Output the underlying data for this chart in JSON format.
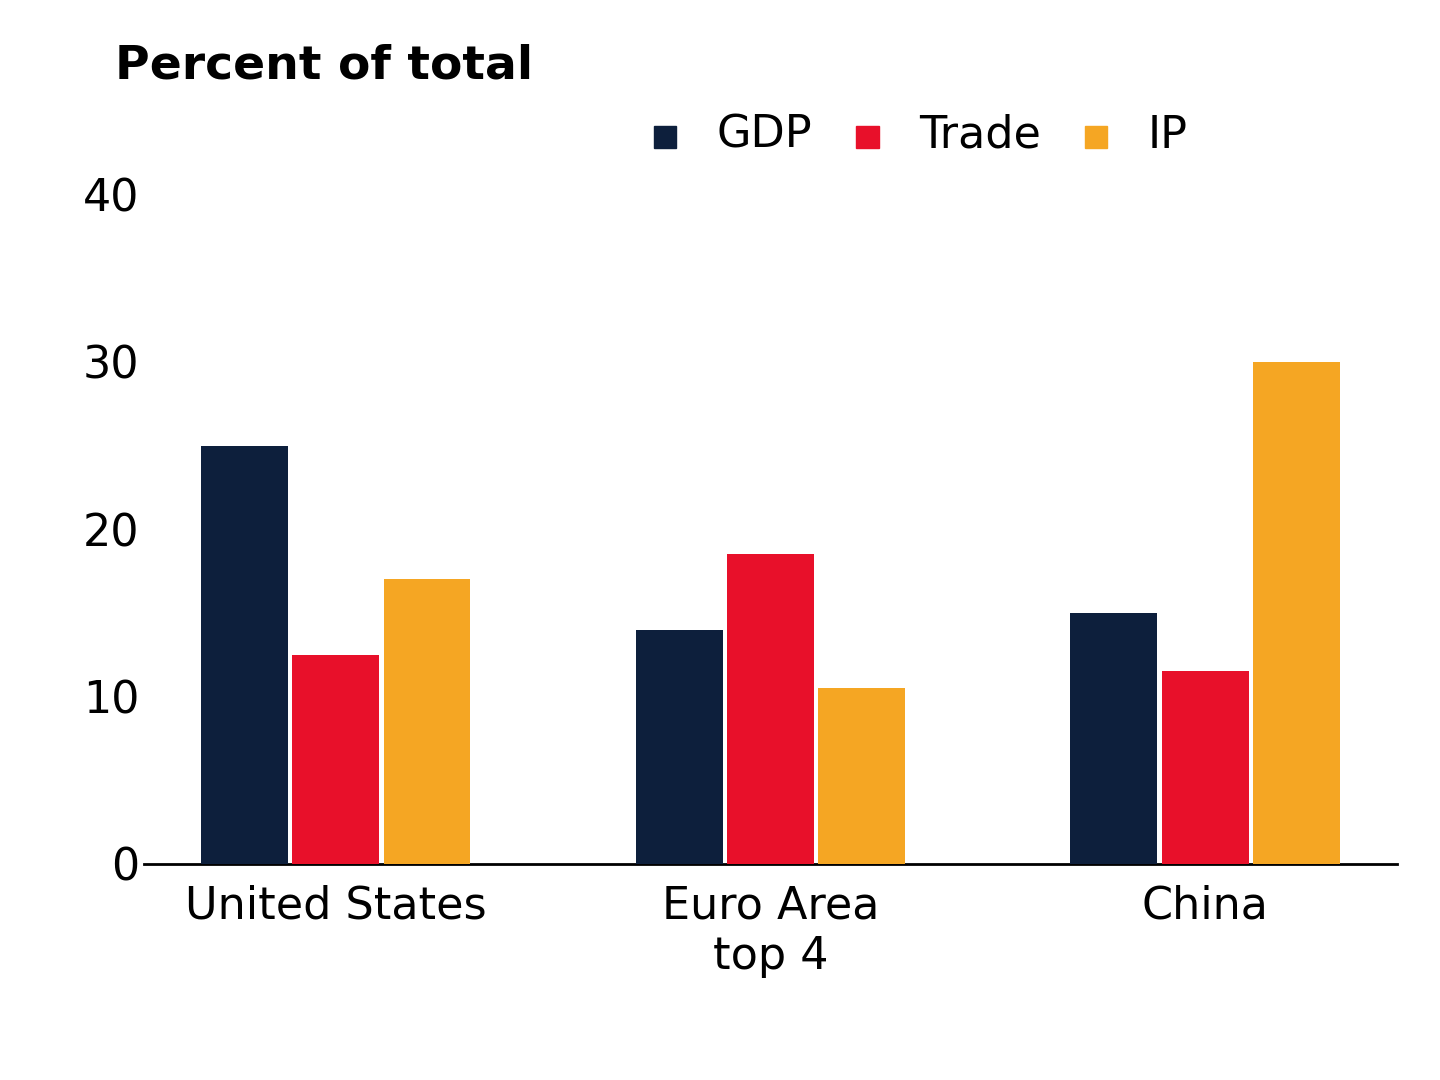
{
  "title": "Percent of total",
  "categories": [
    "United States",
    "Euro Area\ntop 4",
    "China"
  ],
  "series": {
    "GDP": [
      25.0,
      14.0,
      15.0
    ],
    "Trade": [
      12.5,
      18.5,
      11.5
    ],
    "IP": [
      17.0,
      10.5,
      30.0
    ]
  },
  "colors": {
    "GDP": "#0d1f3c",
    "Trade": "#e8102a",
    "IP": "#f5a623"
  },
  "legend_labels": [
    "GDP",
    "Trade",
    "IP"
  ],
  "ylim": [
    0,
    40
  ],
  "yticks": [
    0,
    10,
    20,
    30,
    40
  ],
  "bar_width": 0.2,
  "title_fontsize": 34,
  "tick_fontsize": 32,
  "legend_fontsize": 32,
  "xlabel_fontsize": 32,
  "background_color": "#ffffff"
}
